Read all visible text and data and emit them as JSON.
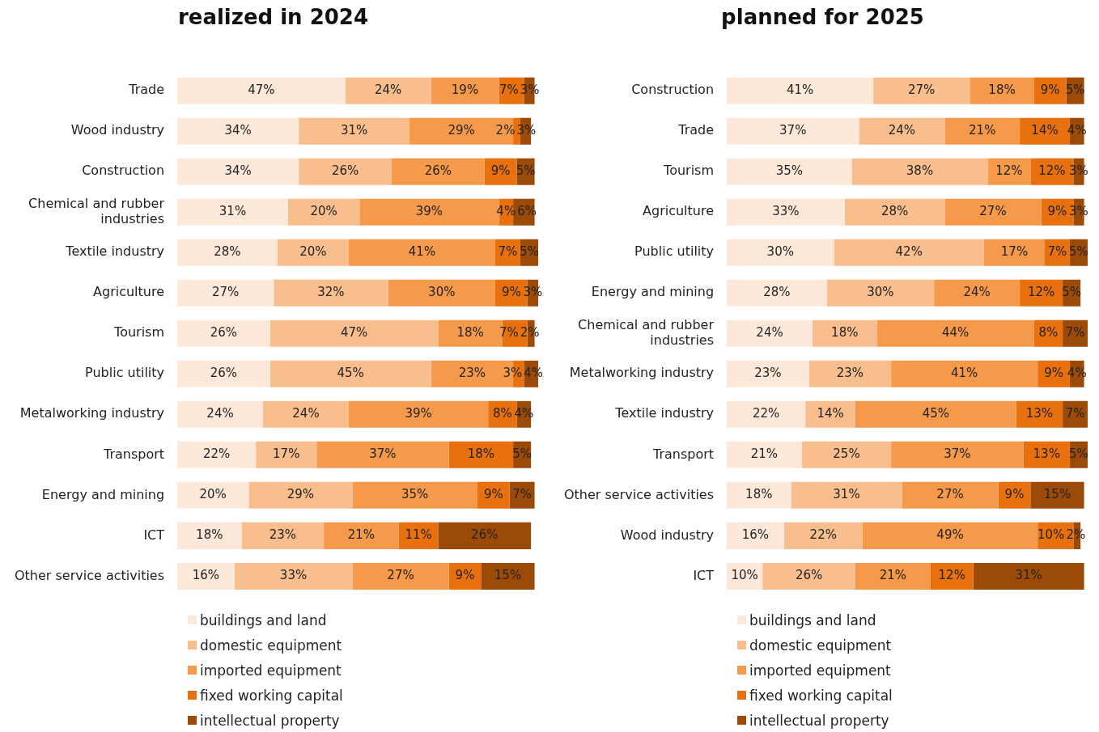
{
  "chart_data": [
    {
      "type": "bar",
      "title": "realized in 2024",
      "orientation": "horizontal",
      "stacked": true,
      "legend": "bottom",
      "tick_labels": "y",
      "categories": [
        "Trade",
        "Wood industry",
        "Construction",
        "Chemical and rubber industries",
        "Textile industry",
        "Agriculture",
        "Tourism",
        "Public utility",
        "Metalworking industry",
        "Transport",
        "Energy and mining",
        "ICT",
        "Other service activities"
      ],
      "series": [
        {
          "name": "buildings and land",
          "color": "#fde8da",
          "values": [
            47,
            34,
            34,
            31,
            28,
            27,
            26,
            26,
            24,
            22,
            20,
            18,
            16
          ],
          "value_labels": [
            "47%",
            "34%",
            "34%",
            "31%",
            "28%",
            "27%",
            "26%",
            "26%",
            "24%",
            "22%",
            "20%",
            "18%",
            "16%"
          ]
        },
        {
          "name": "domestic equipment",
          "color": "#f9be8e",
          "values": [
            24,
            31,
            26,
            20,
            20,
            32,
            47,
            45,
            24,
            17,
            29,
            23,
            33
          ],
          "value_labels": [
            "24%",
            "31%",
            "26%",
            "20%",
            "20%",
            "32%",
            "47%",
            "45%",
            "24%",
            "17%",
            "29%",
            "23%",
            "33%"
          ]
        },
        {
          "name": "imported equipment",
          "color": "#f5994a",
          "values": [
            19,
            29,
            26,
            39,
            41,
            30,
            18,
            23,
            39,
            37,
            35,
            21,
            27
          ],
          "value_labels": [
            "19%",
            "29%",
            "26%",
            "39%",
            "41%",
            "30%",
            "18%",
            "23%",
            "39%",
            "37%",
            "35%",
            "21%",
            "27%"
          ]
        },
        {
          "name": "fixed working capital",
          "color": "#e8700f",
          "values": [
            7,
            2,
            9,
            4,
            7,
            9,
            7,
            3,
            8,
            18,
            9,
            11,
            9
          ],
          "value_labels": [
            "7%",
            "2%",
            "9%",
            "4%",
            "7%",
            "9%",
            "7%",
            "3%",
            "8%",
            "18%",
            "9%",
            "11%",
            "9%"
          ]
        },
        {
          "name": "intellectual property",
          "color": "#9c4a08",
          "values": [
            3,
            3,
            5,
            6,
            5,
            3,
            2,
            4,
            4,
            5,
            7,
            26,
            15
          ],
          "value_labels": [
            "3%",
            "3%",
            "5%",
            "6%",
            "5%",
            "3%",
            "2%",
            "4%",
            "4%",
            "5%",
            "7%",
            "26%",
            "15%"
          ]
        }
      ]
    },
    {
      "type": "bar",
      "title": "planned for 2025",
      "orientation": "horizontal",
      "stacked": true,
      "legend": "bottom",
      "tick_labels": "y",
      "categories": [
        "Construction",
        "Trade",
        "Tourism",
        "Agriculture",
        "Public utility",
        "Energy and mining",
        "Chemical and rubber industries",
        "Metalworking industry",
        "Textile industry",
        "Transport",
        "Other service activities",
        "Wood industry",
        "ICT"
      ],
      "series": [
        {
          "name": "buildings and land",
          "color": "#fde8da",
          "values": [
            41,
            37,
            35,
            33,
            30,
            28,
            24,
            23,
            22,
            21,
            18,
            16,
            10
          ],
          "value_labels": [
            "41%",
            "37%",
            "35%",
            "33%",
            "30%",
            "28%",
            "24%",
            "23%",
            "22%",
            "21%",
            "18%",
            "16%",
            "10%"
          ]
        },
        {
          "name": "domestic equipment",
          "color": "#f9be8e",
          "values": [
            27,
            24,
            38,
            28,
            42,
            30,
            18,
            23,
            14,
            25,
            31,
            22,
            26
          ],
          "value_labels": [
            "27%",
            "24%",
            "38%",
            "28%",
            "42%",
            "30%",
            "18%",
            "23%",
            "14%",
            "25%",
            "31%",
            "22%",
            "26%"
          ]
        },
        {
          "name": "imported equipment",
          "color": "#f5994a",
          "values": [
            18,
            21,
            12,
            27,
            17,
            24,
            44,
            41,
            45,
            37,
            27,
            49,
            21
          ],
          "value_labels": [
            "18%",
            "21%",
            "12%",
            "27%",
            "17%",
            "24%",
            "44%",
            "41%",
            "45%",
            "37%",
            "27%",
            "49%",
            "21%"
          ]
        },
        {
          "name": "fixed working capital",
          "color": "#e8700f",
          "values": [
            9,
            14,
            12,
            9,
            7,
            12,
            8,
            9,
            13,
            13,
            9,
            10,
            12
          ],
          "value_labels": [
            "9%",
            "14%",
            "12%",
            "9%",
            "7%",
            "12%",
            "8%",
            "9%",
            "13%",
            "13%",
            "9%",
            "10%",
            "12%"
          ]
        },
        {
          "name": "intellectual property",
          "color": "#9c4a08",
          "values": [
            5,
            4,
            3,
            3,
            5,
            5,
            7,
            4,
            7,
            5,
            15,
            2,
            31
          ],
          "value_labels": [
            "5%",
            "4%",
            "3%",
            "3%",
            "5%",
            "5%",
            "7%",
            "4%",
            "7%",
            "5%",
            "15%",
            "2%",
            "31%"
          ]
        }
      ]
    }
  ]
}
